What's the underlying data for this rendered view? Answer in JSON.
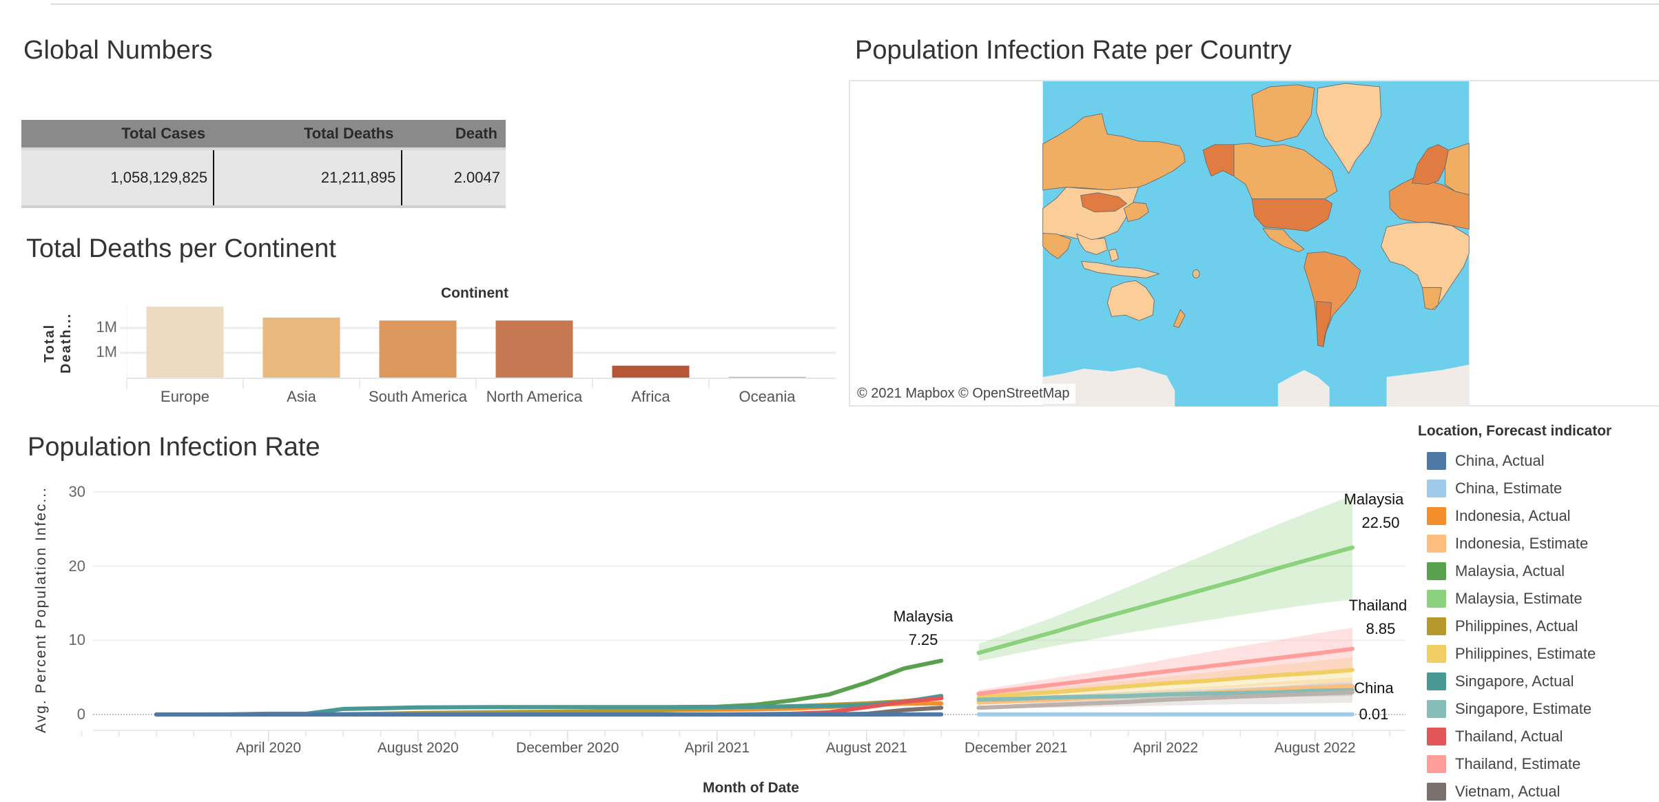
{
  "global_numbers": {
    "title": "Global Numbers",
    "columns": [
      "Total Cases",
      "Total Deaths",
      "Death"
    ],
    "row": [
      "1,058,129,825",
      "21,211,895",
      "2.0047"
    ]
  },
  "continent_chart": {
    "title": "Total Deaths per Continent",
    "chart_data": {
      "type": "bar",
      "header": "Continent",
      "ylabel": "Total Death...",
      "categories": [
        "Europe",
        "Asia",
        "South America",
        "North America",
        "Africa",
        "Oceania"
      ],
      "values": [
        1430000,
        1210000,
        1150000,
        1150000,
        240000,
        3000
      ],
      "y_ticks": [
        {
          "value": 500000,
          "label": "1M"
        },
        {
          "value": 1000000,
          "label": "1M"
        }
      ],
      "colors": [
        "#eedbbf",
        "#e8b87d",
        "#dc985c",
        "#c67850",
        "#b65638",
        "#a8452e"
      ],
      "grid": true
    }
  },
  "map": {
    "title": "Population Infection Rate per Country",
    "attribution": "© 2021 Mapbox  © OpenStreetMap",
    "colors": {
      "ocean": "#6ecfed",
      "low": "#fbcd98",
      "mid": "#f0ae62",
      "high": "#ec9550",
      "highest": "#e07c42",
      "ice": "#f0ebe6"
    }
  },
  "infection_chart": {
    "title": "Population Infection Rate",
    "chart_data": {
      "type": "line",
      "xlabel": "Month of Date",
      "ylabel": "Avg. Percent Population Infec...",
      "ylim": [
        0,
        30
      ],
      "y_ticks": [
        0,
        10,
        20,
        30
      ],
      "x_ticks": [
        "April 2020",
        "August 2020",
        "December 2020",
        "April 2021",
        "August 2021",
        "December 2021",
        "April 2022",
        "August 2022"
      ],
      "x_tick_months": [
        "2020-04",
        "2020-08",
        "2020-12",
        "2021-04",
        "2021-08",
        "2021-12",
        "2022-04",
        "2022-08"
      ],
      "grid": true,
      "legend_title": "Location, Forecast indicator",
      "legend_position": "right",
      "actual_months": [
        "2020-01",
        "2020-02",
        "2020-03",
        "2020-04",
        "2020-05",
        "2020-06",
        "2020-07",
        "2020-08",
        "2020-09",
        "2020-10",
        "2020-11",
        "2020-12",
        "2021-01",
        "2021-02",
        "2021-03",
        "2021-04",
        "2021-05",
        "2021-06",
        "2021-07",
        "2021-08",
        "2021-09",
        "2021-10"
      ],
      "estimate_months": [
        "2021-11",
        "2021-12",
        "2022-01",
        "2022-02",
        "2022-03",
        "2022-04",
        "2022-05",
        "2022-06",
        "2022-07",
        "2022-08",
        "2022-09"
      ],
      "series": [
        {
          "name": "China, Actual",
          "color": "#4e79a7",
          "kind": "actual",
          "values": [
            0,
            0,
            0,
            0,
            0,
            0,
            0,
            0,
            0,
            0,
            0,
            0,
            0,
            0,
            0,
            0,
            0,
            0,
            0,
            0,
            0.01,
            0.01
          ]
        },
        {
          "name": "China, Estimate",
          "color": "#a0cbe8",
          "kind": "estimate",
          "values": [
            0.01,
            0.01,
            0.01,
            0.01,
            0.01,
            0.01,
            0.01,
            0.01,
            0.01,
            0.01,
            0.01
          ]
        },
        {
          "name": "Indonesia, Actual",
          "color": "#f28e2b",
          "kind": "actual",
          "values": [
            0,
            0,
            0,
            0,
            0,
            0.01,
            0.02,
            0.05,
            0.1,
            0.15,
            0.2,
            0.3,
            0.4,
            0.5,
            0.6,
            0.65,
            0.7,
            0.8,
            1.0,
            1.3,
            1.45,
            1.5
          ]
        },
        {
          "name": "Indonesia, Estimate",
          "color": "#ffbe7d",
          "kind": "estimate",
          "values": [
            1.6,
            1.8,
            2.0,
            2.3,
            2.5,
            2.7,
            2.9,
            3.1,
            3.4,
            3.6,
            3.8
          ],
          "lower": [
            1.4,
            1.5,
            1.6,
            1.7,
            1.8,
            2.0,
            2.1,
            2.2,
            2.4,
            2.5,
            2.6
          ],
          "upper": [
            1.8,
            2.1,
            2.4,
            2.8,
            3.1,
            3.4,
            3.7,
            4.0,
            4.4,
            4.7,
            5.0
          ]
        },
        {
          "name": "Malaysia, Actual",
          "color": "#59a14f",
          "kind": "actual",
          "values": [
            0,
            0,
            0,
            0.01,
            0.02,
            0.03,
            0.03,
            0.03,
            0.04,
            0.05,
            0.15,
            0.3,
            0.5,
            0.9,
            1.0,
            1.05,
            1.3,
            1.9,
            2.7,
            4.3,
            6.2,
            7.25
          ]
        },
        {
          "name": "Malaysia, Estimate",
          "color": "#8cd17d",
          "kind": "estimate",
          "values": [
            8.3,
            9.7,
            11.1,
            12.6,
            14.0,
            15.4,
            16.8,
            18.2,
            19.7,
            21.1,
            22.5
          ],
          "lower": [
            7.2,
            8.2,
            9.2,
            10.1,
            11.0,
            11.8,
            12.6,
            13.4,
            14.2,
            14.9,
            15.5
          ],
          "upper": [
            9.5,
            11.3,
            13.1,
            15.1,
            17.2,
            19.3,
            21.4,
            23.5,
            25.6,
            27.6,
            29.5
          ]
        },
        {
          "name": "Philippines, Actual",
          "color": "#b6992d",
          "kind": "actual",
          "values": [
            0,
            0,
            0,
            0.01,
            0.02,
            0.05,
            0.1,
            0.2,
            0.25,
            0.3,
            0.35,
            0.4,
            0.45,
            0.5,
            0.7,
            0.9,
            1.0,
            1.1,
            1.3,
            1.5,
            1.8,
            2.3
          ]
        },
        {
          "name": "Philippines, Estimate",
          "color": "#f1ce63",
          "kind": "estimate",
          "values": [
            2.3,
            2.7,
            3.0,
            3.4,
            3.8,
            4.2,
            4.5,
            4.9,
            5.3,
            5.6,
            6.0
          ],
          "lower": [
            2.0,
            2.2,
            2.5,
            2.7,
            3.0,
            3.2,
            3.5,
            3.7,
            4.0,
            4.2,
            4.5
          ],
          "upper": [
            2.6,
            3.1,
            3.6,
            4.1,
            4.6,
            5.1,
            5.6,
            6.2,
            6.7,
            7.2,
            7.7
          ]
        },
        {
          "name": "Singapore, Actual",
          "color": "#499894",
          "kind": "actual",
          "values": [
            0,
            0,
            0.02,
            0.1,
            0.1,
            0.75,
            0.85,
            0.95,
            0.98,
            1.0,
            1.0,
            1.0,
            1.0,
            1.0,
            1.0,
            1.02,
            1.05,
            1.1,
            1.15,
            1.3,
            1.7,
            2.5
          ]
        },
        {
          "name": "Singapore, Estimate",
          "color": "#86bcb6",
          "kind": "estimate",
          "values": [
            2.0,
            2.1,
            2.3,
            2.4,
            2.5,
            2.7,
            2.8,
            2.9,
            3.0,
            3.2,
            3.3
          ],
          "lower": [
            1.8,
            1.9,
            1.9,
            2.0,
            2.1,
            2.1,
            2.2,
            2.3,
            2.4,
            2.4,
            2.5
          ],
          "upper": [
            2.2,
            2.4,
            2.6,
            2.8,
            3.0,
            3.2,
            3.4,
            3.6,
            3.8,
            4.0,
            4.2
          ]
        },
        {
          "name": "Thailand, Actual",
          "color": "#e15759",
          "kind": "actual",
          "values": [
            0,
            0,
            0,
            0,
            0,
            0,
            0,
            0,
            0,
            0,
            0,
            0,
            0,
            0,
            0,
            0,
            0.05,
            0.1,
            0.3,
            1.0,
            1.7,
            2.2
          ]
        },
        {
          "name": "Thailand, Estimate",
          "color": "#ff9d9a",
          "kind": "estimate",
          "values": [
            2.8,
            3.4,
            4.0,
            4.6,
            5.2,
            5.8,
            6.4,
            7.0,
            7.6,
            8.2,
            8.85
          ],
          "lower": [
            2.4,
            2.7,
            3.0,
            3.4,
            3.7,
            4.0,
            4.4,
            4.7,
            5.1,
            5.4,
            5.8
          ],
          "upper": [
            3.3,
            4.1,
            4.9,
            5.7,
            6.5,
            7.4,
            8.3,
            9.2,
            10.0,
            10.9,
            11.7
          ]
        },
        {
          "name": "Vietnam, Actual",
          "color": "#79706e",
          "kind": "actual",
          "values": [
            0,
            0,
            0,
            0,
            0,
            0,
            0,
            0,
            0,
            0,
            0,
            0,
            0,
            0,
            0,
            0,
            0,
            0,
            0,
            0.1,
            0.6,
            0.9
          ]
        },
        {
          "name": "",
          "color": "#bab0ac",
          "kind": "estimate",
          "values": [
            0.9,
            1.1,
            1.3,
            1.5,
            1.7,
            2.0,
            2.2,
            2.4,
            2.6,
            2.8,
            3.0
          ],
          "lower": [
            0.8,
            0.9,
            0.9,
            1.0,
            1.1,
            1.2,
            1.3,
            1.4,
            1.4,
            1.5,
            1.6
          ],
          "upper": [
            1.0,
            1.4,
            1.7,
            2.1,
            2.4,
            2.8,
            3.1,
            3.5,
            3.8,
            4.2,
            4.5
          ]
        }
      ],
      "annotations": [
        {
          "location": "Malaysia",
          "value": "7.25"
        },
        {
          "location": "Malaysia",
          "value": "22.50"
        },
        {
          "location": "Thailand",
          "value": "8.85"
        },
        {
          "location": "China",
          "value": "0.01"
        }
      ]
    }
  }
}
